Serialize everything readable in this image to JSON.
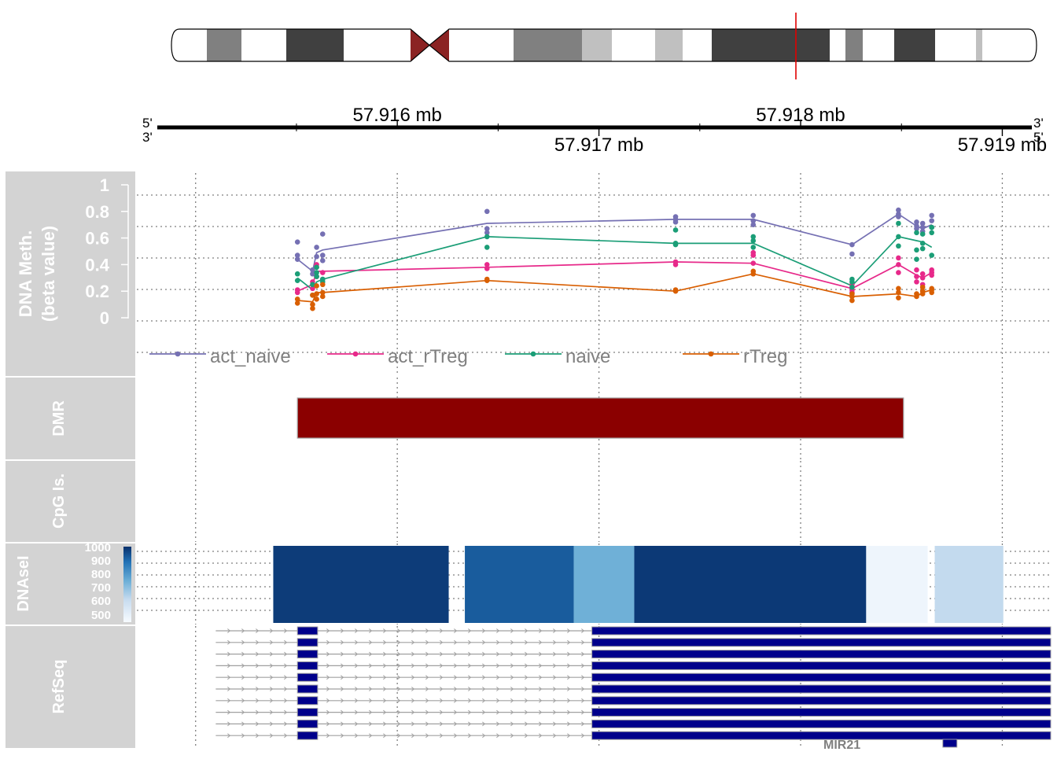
{
  "ideogram": {
    "bands": [
      {
        "stain": "gneg"
      },
      {
        "stain": "gpos50"
      },
      {
        "stain": "gneg"
      },
      {
        "stain": "gpos75"
      },
      {
        "stain": "gneg"
      },
      {
        "stain": "acen"
      },
      {
        "stain": "acen"
      },
      {
        "stain": "gneg"
      },
      {
        "stain": "gpos50"
      },
      {
        "stain": "gpos25"
      },
      {
        "stain": "gneg"
      },
      {
        "stain": "gpos25"
      },
      {
        "stain": "gneg"
      },
      {
        "stain": "gpos75"
      },
      {
        "stain": "gpos75"
      },
      {
        "stain": "gneg"
      },
      {
        "stain": "gpos50"
      },
      {
        "stain": "gneg"
      },
      {
        "stain": "gpos75"
      },
      {
        "stain": "gneg"
      },
      {
        "stain": "gpos25"
      },
      {
        "stain": "gneg"
      }
    ],
    "stain_colors": {
      "gneg": "#ffffff",
      "gpos25": "#c0c0c0",
      "gpos50": "#808080",
      "gpos75": "#404040",
      "acen": "#8b2323"
    },
    "marker_color": "#e00000"
  },
  "axis": {
    "strand_left_top": "5'",
    "strand_left_bottom": "3'",
    "strand_right_top": "3'",
    "strand_right_bottom": "5'",
    "major_ticks": [
      {
        "value": 57.916,
        "label": "57.916 mb",
        "side": "top"
      },
      {
        "value": 57.917,
        "label": "57.917 mb",
        "side": "bottom"
      },
      {
        "value": 57.918,
        "label": "57.918 mb",
        "side": "top"
      },
      {
        "value": 57.919,
        "label": "57.919 mb",
        "side": "bottom"
      }
    ]
  },
  "tracks": {
    "meth": {
      "title_line1": "DNA Meth.",
      "title_line2": "(beta value)"
    },
    "dmr": {
      "title": "DMR",
      "color": "#8b0000"
    },
    "cpg": {
      "title": "CpG Is."
    },
    "dnase": {
      "title": "DNAseI",
      "legend_ticks": [
        "1000",
        "900",
        "800",
        "700",
        "600",
        "500"
      ]
    },
    "refseq": {
      "title": "RefSeq",
      "gene_label": "MIR21",
      "exon_color": "#00008b"
    }
  },
  "panel_color": "#d3d3d3",
  "chart_data": {
    "type": "line",
    "x_unit": "mb",
    "xlim": [
      57.91481,
      57.91924
    ],
    "ylim": [
      0,
      1
    ],
    "y_ticks": [
      0,
      0.2,
      0.4,
      0.6,
      0.8,
      1
    ],
    "y_tick_labels": [
      "0",
      "0.2",
      "0.4",
      "0.6",
      "0.8",
      "1"
    ],
    "grid": true,
    "legend_position": "bottom",
    "series": [
      {
        "name": "act_naive",
        "color": "#7570b3",
        "points": [
          {
            "x": 57.915505,
            "y": [
              0.57,
              0.47,
              0.44
            ]
          },
          {
            "x": 57.91558,
            "y": [
              0.36,
              0.33
            ]
          },
          {
            "x": 57.9156,
            "y": [
              0.53,
              0.46,
              0.38
            ]
          },
          {
            "x": 57.91563,
            "y": [
              0.63,
              0.47,
              0.43
            ]
          },
          {
            "x": 57.916445,
            "y": [
              0.8,
              0.67,
              0.64
            ]
          },
          {
            "x": 57.91738,
            "y": [
              0.76,
              0.74,
              0.72
            ]
          },
          {
            "x": 57.917765,
            "y": [
              0.77,
              0.73,
              0.7
            ]
          },
          {
            "x": 57.918255,
            "y": [
              0.55,
              0.48
            ]
          },
          {
            "x": 57.918485,
            "y": [
              0.81,
              0.78,
              0.76
            ]
          },
          {
            "x": 57.918575,
            "y": [
              0.72,
              0.69,
              0.67
            ]
          },
          {
            "x": 57.918605,
            "y": [
              0.71,
              0.68,
              0.65
            ]
          },
          {
            "x": 57.91865,
            "y": [
              0.77,
              0.73,
              0.68
            ]
          }
        ],
        "line_x": [
          57.915505,
          57.91558,
          57.9156,
          57.91563,
          57.916445,
          57.91738,
          57.917765,
          57.918255,
          57.918485,
          57.918575,
          57.918605,
          57.91865
        ],
        "line_y": [
          0.44,
          0.35,
          0.49,
          0.51,
          0.71,
          0.74,
          0.74,
          0.55,
          0.78,
          0.69,
          0.67,
          0.7
        ]
      },
      {
        "name": "act_rTreg",
        "color": "#e7298a",
        "points": [
          {
            "x": 57.915505,
            "y": [
              0.21,
              0.19
            ]
          },
          {
            "x": 57.91558,
            "y": [
              0.27,
              0.22
            ]
          },
          {
            "x": 57.9156,
            "y": [
              0.4,
              0.31
            ]
          },
          {
            "x": 57.91563,
            "y": [
              0.34,
              0.29
            ]
          },
          {
            "x": 57.916445,
            "y": [
              0.4,
              0.37
            ]
          },
          {
            "x": 57.91738,
            "y": [
              0.42,
              0.4
            ]
          },
          {
            "x": 57.917765,
            "y": [
              0.49,
              0.47,
              0.41
            ]
          },
          {
            "x": 57.918255,
            "y": [
              0.25,
              0.21,
              0.19
            ]
          },
          {
            "x": 57.918485,
            "y": [
              0.45,
              0.4,
              0.34
            ]
          },
          {
            "x": 57.918575,
            "y": [
              0.36,
              0.31,
              0.27
            ]
          },
          {
            "x": 57.918605,
            "y": [
              0.33,
              0.3,
              0.25
            ]
          },
          {
            "x": 57.91865,
            "y": [
              0.36,
              0.34,
              0.32
            ]
          }
        ],
        "line_x": [
          57.915505,
          57.91558,
          57.9156,
          57.91563,
          57.916445,
          57.91738,
          57.917765,
          57.918255,
          57.918485,
          57.918575,
          57.918605,
          57.91865
        ],
        "line_y": [
          0.2,
          0.25,
          0.35,
          0.35,
          0.38,
          0.42,
          0.41,
          0.22,
          0.4,
          0.32,
          0.3,
          0.34
        ]
      },
      {
        "name": "naive",
        "color": "#1b9e77",
        "points": [
          {
            "x": 57.915505,
            "y": [
              0.33,
              0.28
            ]
          },
          {
            "x": 57.91558,
            "y": [
              0.25,
              0.17
            ]
          },
          {
            "x": 57.9156,
            "y": [
              0.38,
              0.34,
              0.31
            ]
          },
          {
            "x": 57.91563,
            "y": [
              0.29,
              0.27
            ]
          },
          {
            "x": 57.916445,
            "y": [
              0.61,
              0.53
            ]
          },
          {
            "x": 57.91738,
            "y": [
              0.66,
              0.56,
              0.55
            ]
          },
          {
            "x": 57.917765,
            "y": [
              0.61,
              0.58,
              0.53
            ]
          },
          {
            "x": 57.918255,
            "y": [
              0.29,
              0.27,
              0.23
            ]
          },
          {
            "x": 57.918485,
            "y": [
              0.71,
              0.61,
              0.54
            ]
          },
          {
            "x": 57.918575,
            "y": [
              0.64,
              0.51,
              0.44
            ]
          },
          {
            "x": 57.918605,
            "y": [
              0.63,
              0.56,
              0.52
            ]
          },
          {
            "x": 57.91865,
            "y": [
              0.68,
              0.64,
              0.47
            ]
          }
        ],
        "line_x": [
          57.915505,
          57.91558,
          57.9156,
          57.91563,
          57.916445,
          57.91738,
          57.917765,
          57.918255,
          57.918485,
          57.918575,
          57.918605,
          57.91865
        ],
        "line_y": [
          0.3,
          0.21,
          0.27,
          0.29,
          0.61,
          0.56,
          0.56,
          0.24,
          0.61,
          0.58,
          0.57,
          0.53
        ]
      },
      {
        "name": "rTreg",
        "color": "#d95f02",
        "points": [
          {
            "x": 57.915505,
            "y": [
              0.14,
              0.11
            ]
          },
          {
            "x": 57.91558,
            "y": [
              0.17,
              0.1,
              0.07
            ]
          },
          {
            "x": 57.9156,
            "y": [
              0.24,
              0.18,
              0.14
            ]
          },
          {
            "x": 57.91563,
            "y": [
              0.25,
              0.19,
              0.16
            ]
          },
          {
            "x": 57.916445,
            "y": [
              0.29,
              0.28
            ]
          },
          {
            "x": 57.91738,
            "y": [
              0.21,
              0.2
            ]
          },
          {
            "x": 57.917765,
            "y": [
              0.35,
              0.33
            ]
          },
          {
            "x": 57.918255,
            "y": [
              0.18,
              0.16,
              0.13
            ]
          },
          {
            "x": 57.918485,
            "y": [
              0.22,
              0.19,
              0.15
            ]
          },
          {
            "x": 57.918575,
            "y": [
              0.18,
              0.16
            ]
          },
          {
            "x": 57.918605,
            "y": [
              0.23,
              0.2,
              0.18
            ]
          },
          {
            "x": 57.91865,
            "y": [
              0.22,
              0.21,
              0.19
            ]
          }
        ],
        "line_x": [
          57.915505,
          57.91558,
          57.9156,
          57.91563,
          57.916445,
          57.91738,
          57.917765,
          57.918255,
          57.918485,
          57.918575,
          57.918605,
          57.91865
        ],
        "line_y": [
          0.13,
          0.12,
          0.19,
          0.19,
          0.28,
          0.2,
          0.33,
          0.16,
          0.18,
          0.16,
          0.19,
          0.21
        ]
      }
    ],
    "dmr_regions": [
      {
        "start": 57.915505,
        "end": 57.91851
      }
    ],
    "dnase_segments": [
      {
        "start": 57.915385,
        "end": 57.916255,
        "value": 980
      },
      {
        "start": 57.916335,
        "end": 57.916875,
        "value": 930
      },
      {
        "start": 57.916875,
        "end": 57.917175,
        "value": 760
      },
      {
        "start": 57.917175,
        "end": 57.918325,
        "value": 985
      },
      {
        "start": 57.918325,
        "end": 57.91863,
        "value": 510
      },
      {
        "start": 57.918665,
        "end": 57.919005,
        "value": 640
      }
    ],
    "dnase_scale": [
      480,
      1000
    ],
    "refseq": {
      "transcript_count": 10,
      "intron_start": 57.9151,
      "exon1": {
        "start": 57.915505,
        "end": 57.915605
      },
      "exon2": {
        "start": 57.916965,
        "end": 57.91924
      },
      "gene_exon": {
        "start": 57.918705,
        "end": 57.918775
      }
    }
  }
}
